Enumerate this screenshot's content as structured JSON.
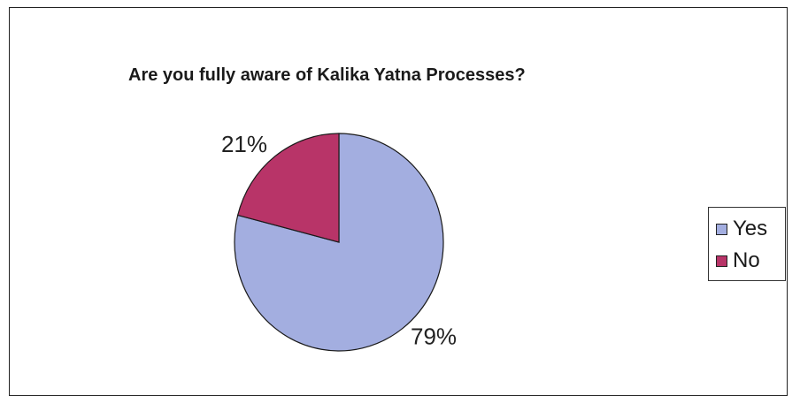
{
  "chart_data": {
    "type": "pie",
    "title": "Are you fully aware of Kalika Yatna Processes?",
    "categories": [
      "Yes",
      "No"
    ],
    "values": [
      79,
      21
    ],
    "data_labels": [
      "79%",
      "21%"
    ],
    "colors": [
      "#a3aee0",
      "#b83468"
    ],
    "legend": {
      "placement": "right",
      "entries": [
        "Yes",
        "No"
      ]
    }
  }
}
